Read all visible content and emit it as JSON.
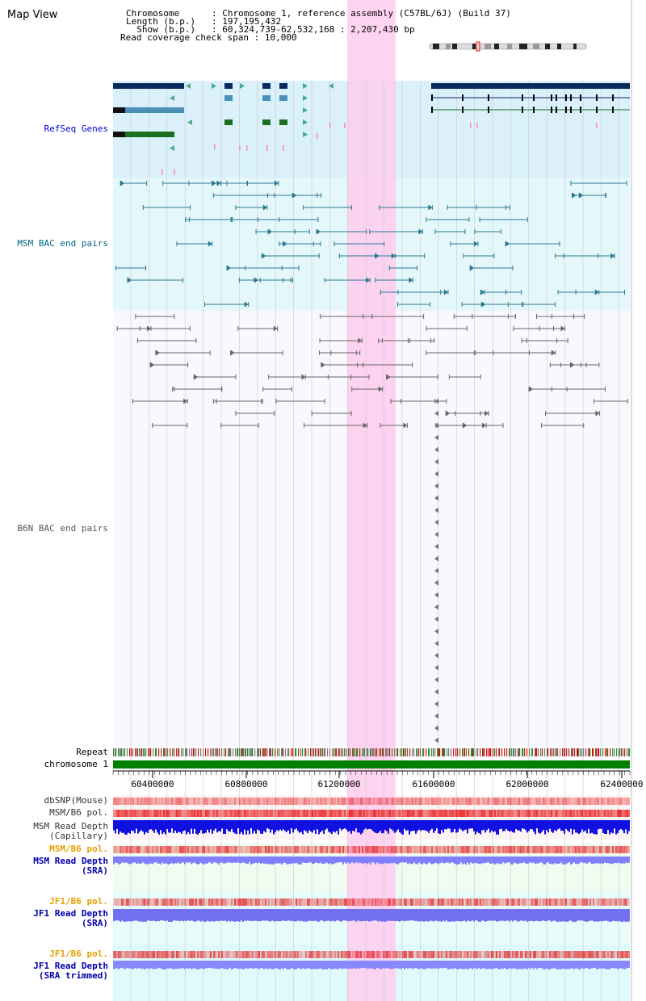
{
  "page": {
    "title": "Map View"
  },
  "header": {
    "lines": [
      {
        "label": "Chromosome",
        "value": "Chromosome 1, reference assembly (C57BL/6J) (Build 37)"
      },
      {
        "label": "Length (b.p.)",
        "value": "197,195,432"
      },
      {
        "label": "Show (b.p.)",
        "value": "60,324,739-62,532,168 : 2,207,430 bp"
      },
      {
        "label": "Read coverage check span",
        "value": "10,000"
      }
    ]
  },
  "tracks": {
    "refseq": {
      "label": "RefSeq Genes",
      "color": "#0000cc"
    },
    "msm_bac": {
      "label": "MSM BAC end pairs",
      "color": "#006688"
    },
    "b6n_bac": {
      "label": "B6N BAC end pairs",
      "color": "#555555"
    },
    "repeat": {
      "label": "Repeat"
    },
    "chromosome": {
      "label": "chromosome 1"
    },
    "dbsnp": {
      "label": "dbSNP(Mouse)",
      "color": "#333333"
    },
    "msm_b6_pol_1": {
      "label": "MSM/B6 pol.",
      "color": "#333333"
    },
    "msm_depth_cap": {
      "label": "MSM Read Depth\n(Capillary)",
      "color": "#333333"
    },
    "msm_b6_pol_2": {
      "label": "MSM/B6 pol.",
      "color": "#e6a000"
    },
    "msm_depth_sra": {
      "label": "MSM Read Depth\n(SRA)",
      "color": "#0000aa"
    },
    "jf1_b6_pol_1": {
      "label": "JF1/B6 pol.",
      "color": "#e6a000"
    },
    "jf1_depth_sra": {
      "label": "JF1 Read Depth\n(SRA)",
      "color": "#0000aa"
    },
    "jf1_b6_pol_2": {
      "label": "JF1/B6 pol.",
      "color": "#e6a000"
    },
    "jf1_depth_trim": {
      "label": "JF1 Read Depth\n(SRA trimmed)",
      "color": "#0000aa"
    }
  },
  "axis": {
    "ticks": [
      "60400000",
      "60800000",
      "61200000",
      "61600000",
      "62000000",
      "62400000"
    ]
  },
  "highlight": {
    "color": "#ffccee"
  }
}
